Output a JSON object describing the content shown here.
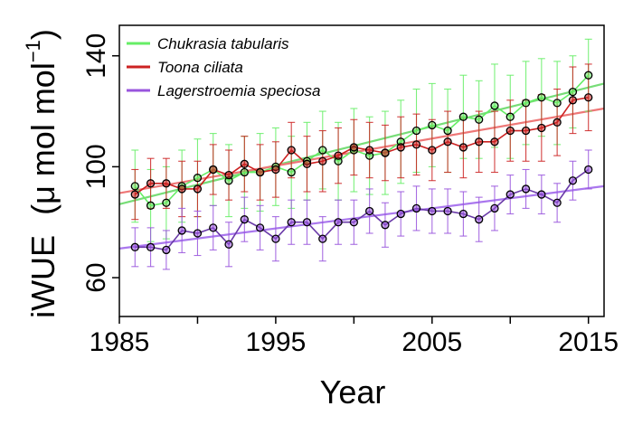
{
  "chart_data": {
    "type": "line",
    "title": "",
    "xlabel": "Year",
    "ylabel_main": "iWUE",
    "ylabel_unit": "(μ mol mol",
    "ylabel_sup": "−1",
    "ylabel_close": ")",
    "xlim": [
      1985,
      2016
    ],
    "ylim": [
      46,
      151
    ],
    "xticks": [
      1985,
      1995,
      2005,
      2015
    ],
    "xtick_labels": [
      "1985",
      "1995",
      "2005",
      "2015"
    ],
    "yticks": [
      60,
      100,
      140
    ],
    "ytick_labels": [
      "60",
      "100",
      "140"
    ],
    "legend_position": "top-left",
    "x": [
      1986,
      1987,
      1988,
      1989,
      1990,
      1991,
      1992,
      1993,
      1994,
      1995,
      1996,
      1997,
      1998,
      1999,
      2000,
      2001,
      2002,
      2003,
      2004,
      2005,
      2006,
      2007,
      2008,
      2009,
      2010,
      2011,
      2012,
      2013,
      2014,
      2015
    ],
    "series": [
      {
        "name": "Chukrasia tabularis",
        "color": "#66ee66",
        "trend_color": "#77dd77",
        "values": [
          93,
          86,
          87,
          93,
          96,
          99,
          95,
          98,
          98,
          100,
          98,
          102,
          106,
          102,
          106,
          104,
          105,
          109,
          113,
          115,
          113,
          118,
          117,
          122,
          118,
          123,
          125,
          123,
          127,
          133
        ],
        "error": [
          13,
          13,
          13,
          13,
          14,
          13,
          13,
          13,
          14,
          14,
          13,
          14,
          14,
          14,
          15,
          14,
          15,
          15,
          15,
          15,
          15,
          15,
          14,
          15,
          15,
          15,
          14,
          15,
          13,
          13
        ],
        "trend": [
          86.5,
          130
        ]
      },
      {
        "name": "Toona ciliata",
        "color": "#cc2222",
        "trend_color": "#ee7777",
        "values": [
          90,
          94,
          94,
          92,
          92,
          99,
          97,
          101,
          98,
          99,
          106,
          101,
          102,
          104,
          107,
          106,
          105,
          107,
          108,
          106,
          109,
          107,
          109,
          109,
          113,
          113,
          114,
          116,
          124,
          125
        ],
        "error": [
          9,
          9,
          9,
          10,
          10,
          9,
          9,
          10,
          10,
          10,
          10,
          10,
          11,
          10,
          10,
          10,
          10,
          11,
          11,
          11,
          11,
          11,
          11,
          11,
          11,
          11,
          12,
          12,
          12,
          12
        ],
        "trend": [
          90.5,
          121
        ]
      },
      {
        "name": "Lagerstroemia speciosa",
        "color": "#9955dd",
        "trend_color": "#aa77ee",
        "values": [
          71,
          71,
          70,
          77,
          76,
          78,
          72,
          81,
          78,
          74,
          80,
          80,
          74,
          80,
          80,
          84,
          79,
          83,
          85,
          84,
          84,
          83,
          81,
          85,
          90,
          92,
          90,
          87,
          95,
          99
        ],
        "error": [
          7,
          7,
          7,
          8,
          8,
          8,
          8,
          8,
          8,
          8,
          8,
          8,
          8,
          8,
          8,
          8,
          8,
          8,
          8,
          8,
          8,
          8,
          8,
          8,
          7,
          7,
          7,
          7,
          7,
          7
        ],
        "trend": [
          70.5,
          93
        ]
      }
    ]
  }
}
